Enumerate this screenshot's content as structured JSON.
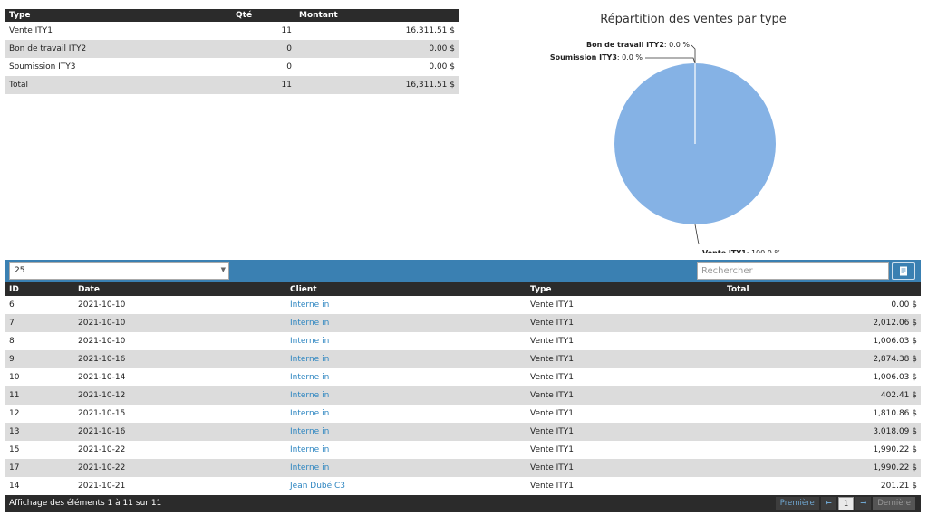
{
  "summary": {
    "headers": [
      "Type",
      "Qté",
      "Montant"
    ],
    "rows": [
      {
        "type": "Vente ITY1",
        "qty": "11",
        "amount": "16,311.51 $"
      },
      {
        "type": "Bon de travail ITY2",
        "qty": "0",
        "amount": "0.00 $"
      },
      {
        "type": "Soumission ITY3",
        "qty": "0",
        "amount": "0.00 $"
      },
      {
        "type": "Total",
        "qty": "11",
        "amount": "16,311.51 $"
      }
    ]
  },
  "chart_data": {
    "type": "pie",
    "title": "Répartition des ventes par type",
    "slices": [
      {
        "name": "Vente ITY1",
        "value": 100.0,
        "label": "Vente ITY1",
        "pct_label": ": 100.0 %"
      },
      {
        "name": "Bon de travail ITY2",
        "value": 0.0,
        "label": "Bon de travail ITY2",
        "pct_label": ": 0.0 %"
      },
      {
        "name": "Soumission ITY3",
        "value": 0.0,
        "label": "Soumission ITY3",
        "pct_label": ": 0.0 %"
      }
    ],
    "color": "#85b2e5"
  },
  "toolbar": {
    "page_size": "25",
    "search_placeholder": "Rechercher",
    "accent": "#3a80b2"
  },
  "table": {
    "headers": [
      "ID",
      "Date",
      "Client",
      "Type",
      "Total"
    ],
    "rows": [
      {
        "id": "6",
        "date": "2021-10-10",
        "client": "Interne in",
        "type": "Vente ITY1",
        "total": "0.00 $"
      },
      {
        "id": "7",
        "date": "2021-10-10",
        "client": "Interne in",
        "type": "Vente ITY1",
        "total": "2,012.06 $"
      },
      {
        "id": "8",
        "date": "2021-10-10",
        "client": "Interne in",
        "type": "Vente ITY1",
        "total": "1,006.03 $"
      },
      {
        "id": "9",
        "date": "2021-10-16",
        "client": "Interne in",
        "type": "Vente ITY1",
        "total": "2,874.38 $"
      },
      {
        "id": "10",
        "date": "2021-10-14",
        "client": "Interne in",
        "type": "Vente ITY1",
        "total": "1,006.03 $"
      },
      {
        "id": "11",
        "date": "2021-10-12",
        "client": "Interne in",
        "type": "Vente ITY1",
        "total": "402.41 $"
      },
      {
        "id": "12",
        "date": "2021-10-15",
        "client": "Interne in",
        "type": "Vente ITY1",
        "total": "1,810.86 $"
      },
      {
        "id": "13",
        "date": "2021-10-16",
        "client": "Interne in",
        "type": "Vente ITY1",
        "total": "3,018.09 $"
      },
      {
        "id": "15",
        "date": "2021-10-22",
        "client": "Interne in",
        "type": "Vente ITY1",
        "total": "1,990.22 $"
      },
      {
        "id": "17",
        "date": "2021-10-22",
        "client": "Interne in",
        "type": "Vente ITY1",
        "total": "1,990.22 $"
      },
      {
        "id": "14",
        "date": "2021-10-21",
        "client": "Jean Dubé C3",
        "type": "Vente ITY1",
        "total": "201.21 $"
      }
    ]
  },
  "footer": {
    "info": "Affichage des éléments 1 à 11 sur 11",
    "first": "Première",
    "prev_icon": "arrow-left-icon",
    "current_page": "1",
    "next_icon": "arrow-right-icon",
    "last": "Dernière"
  }
}
